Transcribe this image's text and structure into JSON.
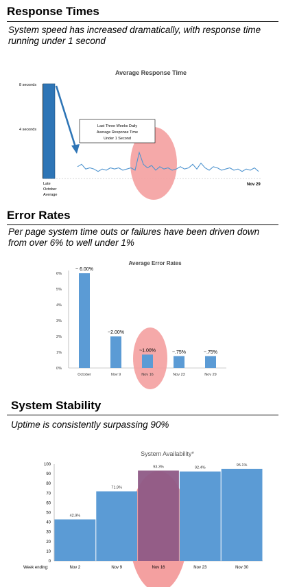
{
  "sections": {
    "response": {
      "title": "Response Times",
      "subtitle": "System speed has increased dramatically, with  response time running under 1 second"
    },
    "errors": {
      "title": "Error Rates",
      "subtitle": "Per page system time outs or failures have been driven down from over 6% to well under 1%"
    },
    "stability": {
      "title": "System Stability",
      "subtitle": "Uptime is consistently surpassing 90%"
    }
  },
  "colors": {
    "bar": "#5B9BD5",
    "bar_dark": "#2E75B6",
    "highlight": "#F4A0A0",
    "overlap": "#8E5A86",
    "line": "#4F94CF"
  },
  "chart_data": [
    {
      "type": "line",
      "title": "Average Response Time",
      "yticks": [
        "8 seconds",
        "4 seconds"
      ],
      "ylim": [
        0,
        9
      ],
      "bar_label": [
        "Late",
        "October",
        "Average"
      ],
      "bar_value": 8,
      "x_end_label": "Nov 29",
      "annotation": [
        "Last Three Weeks Daily",
        "Average Response Time",
        "Under 1 Second"
      ],
      "series": [
        {
          "values": [
            1.0,
            1.2,
            0.8,
            0.9,
            0.8,
            0.6,
            0.8,
            0.7,
            0.9,
            0.8,
            0.9,
            0.7,
            0.8,
            0.9,
            0.7,
            2.2,
            1.2,
            0.9,
            1.1,
            0.7,
            1.0,
            0.8,
            0.9,
            0.7,
            0.8,
            1.0,
            0.8,
            0.9,
            1.2,
            0.8,
            1.3,
            0.9,
            0.7,
            1.0,
            0.9,
            0.7,
            0.8,
            0.9,
            0.7,
            0.8,
            0.6,
            0.8,
            0.7,
            0.9,
            0.6
          ]
        }
      ]
    },
    {
      "type": "bar",
      "title": "Average Error Rates",
      "categories": [
        "October",
        "Nov 9",
        "Nov 16",
        "Nov 23",
        "Nov 29"
      ],
      "values": [
        6.0,
        2.0,
        0.85,
        0.75,
        0.75
      ],
      "data_labels": [
        "~ 6.00%",
        "~2.00%",
        "~1.00%",
        "~.75%",
        "~.75%"
      ],
      "yticks": [
        "0%",
        "1%",
        "2%",
        "3%",
        "4%",
        "5%",
        "6%"
      ],
      "ylim": [
        0,
        6
      ],
      "highlight": "Nov 16"
    },
    {
      "type": "bar",
      "title": "System Availability*",
      "xlabel": "Week ending:",
      "categories": [
        "Nov 2",
        "Nov 9",
        "Nov 16",
        "Nov 23",
        "Nov 30"
      ],
      "values": [
        42.9,
        71.9,
        93.3,
        92.4,
        95.1
      ],
      "data_labels": [
        "42.9%",
        "71.9%",
        "93.3%",
        "92.4%",
        "95.1%"
      ],
      "yticks": [
        "0",
        "10",
        "20",
        "30",
        "40",
        "50",
        "60",
        "70",
        "80",
        "90",
        "100"
      ],
      "ylim": [
        0,
        100
      ],
      "highlight": "Nov 16"
    }
  ]
}
